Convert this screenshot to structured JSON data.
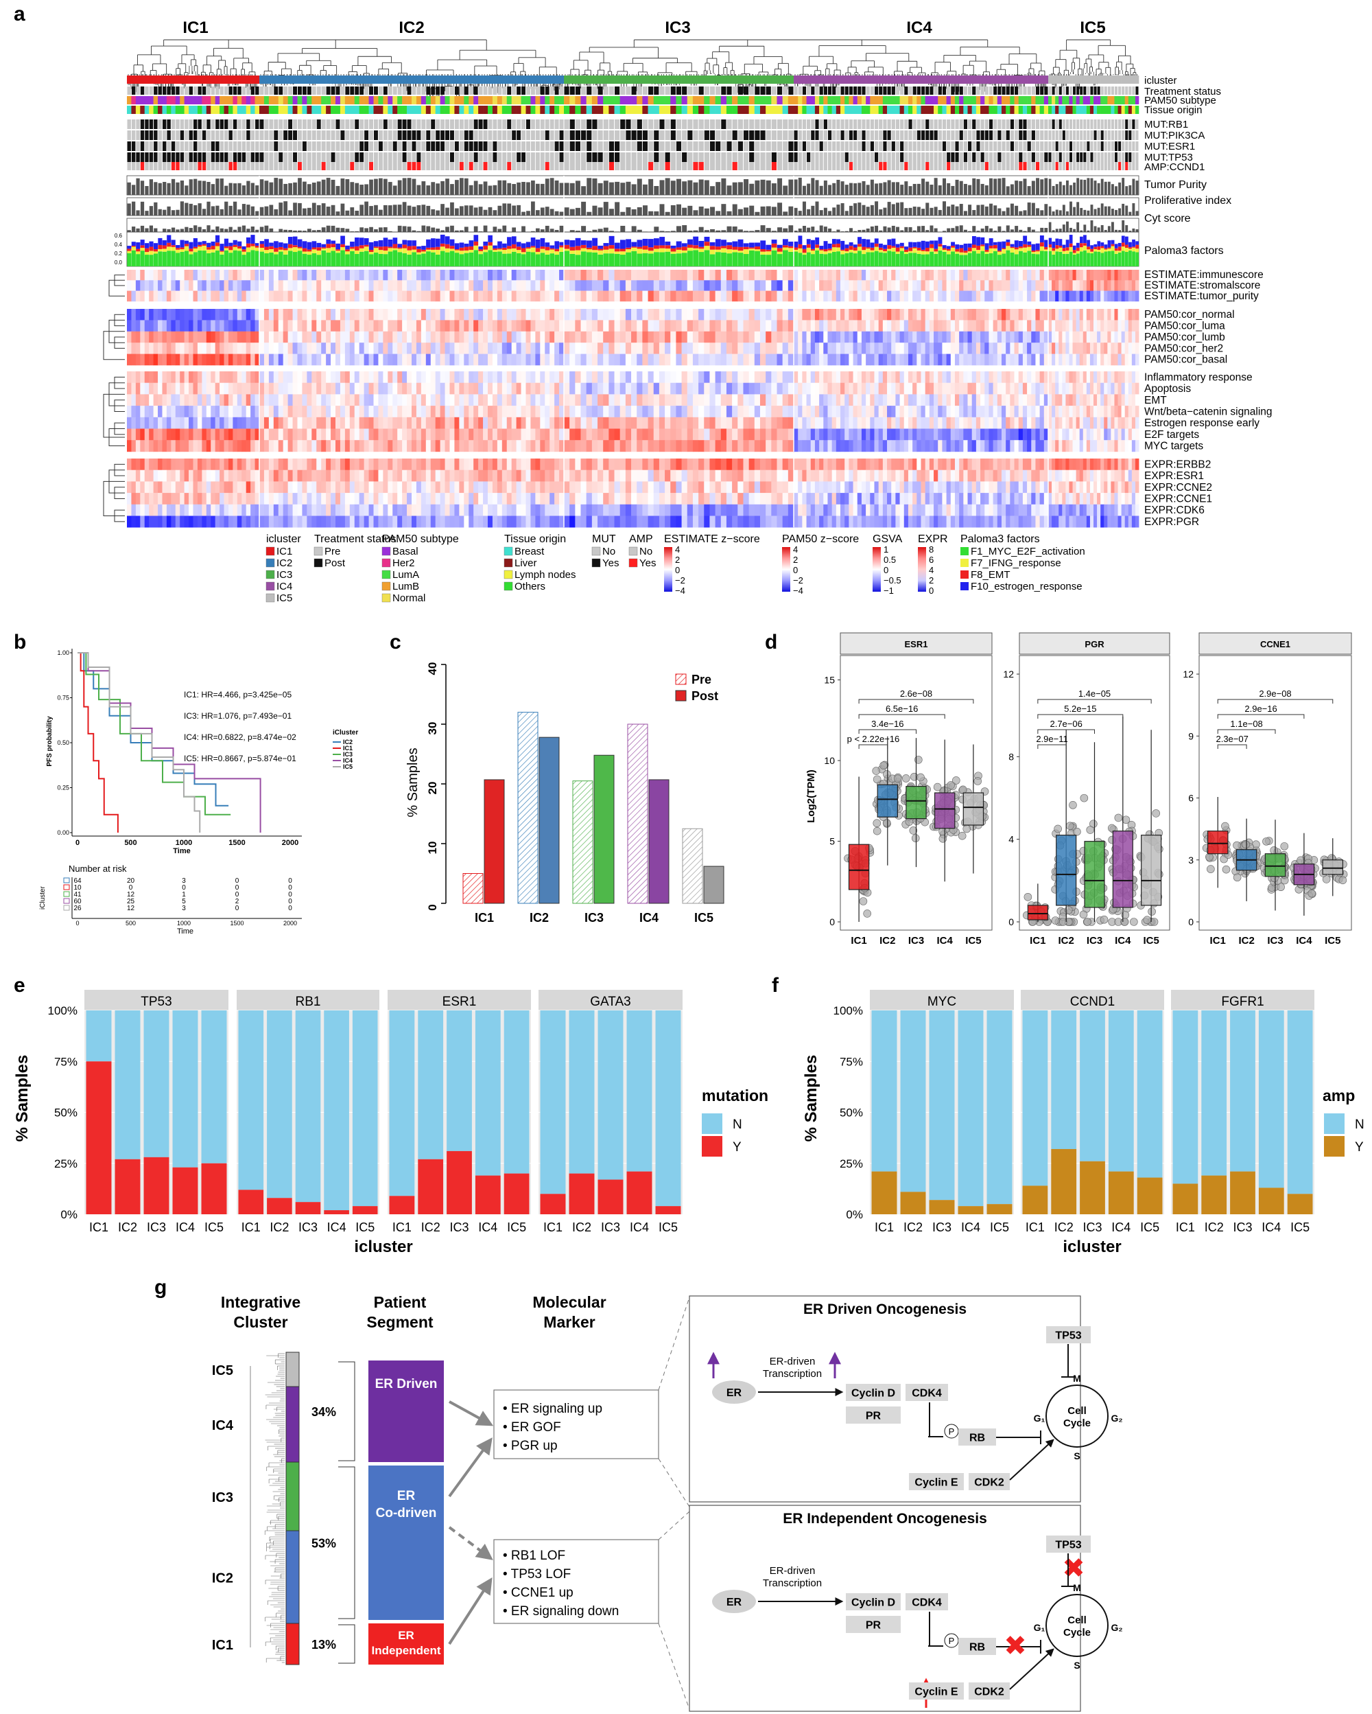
{
  "figure": {
    "panel_letters": [
      "a",
      "b",
      "c",
      "d",
      "e",
      "f",
      "g"
    ]
  },
  "panel_a": {
    "cluster_titles": [
      "IC1",
      "IC2",
      "IC3",
      "IC4",
      "IC5"
    ],
    "track_labels": [
      "icluster",
      "Treatment status",
      "PAM50 subtype",
      "Tissue origin",
      "MUT:RB1",
      "MUT:PIK3CA",
      "MUT:ESR1",
      "MUT:TP53",
      "AMP:CCND1"
    ],
    "bar_labels": [
      "Tumor Purity",
      "Proliferative index",
      "Cyt score",
      "Paloma3 factors"
    ],
    "heat_row_labels": [
      "ESTIMATE:immunescore",
      "ESTIMATE:stromalscore",
      "ESTIMATE:tumor_purity",
      "PAM50:cor_normal",
      "PAM50:cor_luma",
      "PAM50:cor_lumb",
      "PAM50:cor_her2",
      "PAM50:cor_basal",
      "Inflammatory response",
      "Apoptosis",
      "EMT",
      "Wnt/beta−catenin signaling",
      "Estrogen response early",
      "E2F targets",
      "MYC targets",
      "EXPR:ERBB2",
      "EXPR:ESR1",
      "EXPR:CCNE2",
      "EXPR:CCNE1",
      "EXPR:CDK6",
      "EXPR:PGR"
    ],
    "legends": [
      {
        "title": "icluster",
        "items": [
          {
            "label": "IC1",
            "color": "#e41a1c"
          },
          {
            "label": "IC2",
            "color": "#377eb8"
          },
          {
            "label": "IC3",
            "color": "#4daf4a"
          },
          {
            "label": "IC4",
            "color": "#984ea3"
          },
          {
            "label": "IC5",
            "color": "#bdbdbd"
          }
        ]
      },
      {
        "title": "Treatment status",
        "items": [
          {
            "label": "Pre",
            "color": "#c8c8c8"
          },
          {
            "label": "Post",
            "color": "#111111"
          }
        ]
      },
      {
        "title": "PAM50 subtype",
        "items": [
          {
            "label": "Basal",
            "color": "#9b30d9"
          },
          {
            "label": "Her2",
            "color": "#e8308a"
          },
          {
            "label": "LumA",
            "color": "#44dd44"
          },
          {
            "label": "LumB",
            "color": "#f0a030"
          },
          {
            "label": "Normal",
            "color": "#f0e050"
          }
        ]
      },
      {
        "title": "Tissue origin",
        "items": [
          {
            "label": "Breast",
            "color": "#40e0d0"
          },
          {
            "label": "Liver",
            "color": "#8b1a1a"
          },
          {
            "label": "Lymph nodes",
            "color": "#f0f040"
          },
          {
            "label": "Others",
            "color": "#33dd33"
          }
        ]
      },
      {
        "title": "MUT",
        "items": [
          {
            "label": "No",
            "color": "#c8c8c8"
          },
          {
            "label": "Yes",
            "color": "#111111"
          }
        ]
      },
      {
        "title": "AMP",
        "items": [
          {
            "label": "No",
            "color": "#c8c8c8"
          },
          {
            "label": "Yes",
            "color": "#ff2020"
          }
        ]
      }
    ],
    "gradient_legends": [
      {
        "title": "ESTIMATE z−score",
        "ticks": [
          "4",
          "2",
          "0",
          "−2",
          "−4"
        ]
      },
      {
        "title": "PAM50 z−score",
        "ticks": [
          "4",
          "2",
          "0",
          "−2",
          "−4"
        ]
      },
      {
        "title": "GSVA",
        "ticks": [
          "1",
          "0.5",
          "0",
          "−0.5",
          "−1"
        ]
      },
      {
        "title": "EXPR",
        "ticks": [
          "8",
          "6",
          "4",
          "2",
          "0"
        ]
      }
    ],
    "paloma_legend": {
      "title": "Paloma3 factors",
      "items": [
        {
          "label": "F1_MYC_E2F_activation",
          "color": "#33dd33"
        },
        {
          "label": "F7_IFNG_response",
          "color": "#f0f040"
        },
        {
          "label": "F8_EMT",
          "color": "#ee2222"
        },
        {
          "label": "F10_estrogen_response",
          "color": "#2222ee"
        }
      ]
    },
    "cluster_colors": [
      "#e41a1c",
      "#377eb8",
      "#4daf4a",
      "#984ea3",
      "#bdbdbd"
    ]
  },
  "panel_b": {
    "ylabel": "PFS probability",
    "xlabel": "Time",
    "x_ticks": [
      "0",
      "500",
      "1000",
      "1500",
      "2000"
    ],
    "y_ticks": [
      "0.00",
      "0.25",
      "0.50",
      "0.75",
      "1.00"
    ],
    "annotations": [
      "IC1: HR=4.466, p=3.425e−05",
      "IC3: HR=1.076, p=7.493e−01",
      "IC4: HR=0.6822, p=8.474e−02",
      "IC5: HR=0.8667, p=5.874e−01"
    ],
    "legend_title": "iCluster",
    "legend_items": [
      "IC2",
      "IC1",
      "IC3",
      "IC4",
      "IC5"
    ],
    "risk_title": "Number at risk",
    "risk_ylabel": "iCluster",
    "risk_rows": [
      {
        "label": "IC2",
        "values": [
          "64",
          "20",
          "3",
          "0",
          "0"
        ]
      },
      {
        "label": "IC1",
        "values": [
          "10",
          "0",
          "0",
          "0",
          "0"
        ]
      },
      {
        "label": "IC3",
        "values": [
          "41",
          "12",
          "1",
          "0",
          "0"
        ]
      },
      {
        "label": "IC4",
        "values": [
          "60",
          "25",
          "5",
          "2",
          "0"
        ]
      },
      {
        "label": "IC5",
        "values": [
          "26",
          "12",
          "3",
          "0",
          "0"
        ]
      }
    ],
    "risk_xlabel": "Time"
  },
  "panel_c": {
    "chart_data": {
      "type": "bar",
      "categories": [
        "IC1",
        "IC2",
        "IC3",
        "IC4",
        "IC5"
      ],
      "series": [
        {
          "name": "Pre",
          "values": [
            5,
            32,
            20.5,
            30,
            12.5
          ]
        },
        {
          "name": "Post",
          "values": [
            20.7,
            27.8,
            24.8,
            20.7,
            6.2
          ]
        }
      ],
      "ylabel": "% Samples",
      "ylim": [
        0,
        40
      ],
      "y_ticks": [
        "0",
        "10",
        "20",
        "30",
        "40"
      ],
      "legend": [
        "Pre",
        "Post"
      ]
    }
  },
  "panel_d": {
    "ylabel": "Log2(TPM)",
    "facets": [
      {
        "title": "ESR1",
        "y_ticks": [
          "0",
          "5",
          "10",
          "15"
        ],
        "ymax": 16,
        "medians": [
          3.2,
          7.6,
          7.5,
          7.0,
          7.1
        ],
        "q1": [
          2.0,
          6.5,
          6.4,
          5.8,
          6.0
        ],
        "q3": [
          4.8,
          8.5,
          8.4,
          8.0,
          8.0
        ],
        "comparisons": [
          "p < 2.22e−16",
          "3.4e−16",
          "6.5e−16",
          "2.6e−08"
        ]
      },
      {
        "title": "PGR",
        "y_ticks": [
          "0",
          "4",
          "8",
          "12"
        ],
        "ymax": 12.5,
        "medians": [
          0.4,
          2.3,
          2.0,
          2.0,
          2.0
        ],
        "q1": [
          0.1,
          0.8,
          0.7,
          0.7,
          0.8
        ],
        "q3": [
          0.8,
          4.2,
          3.9,
          4.4,
          4.2
        ],
        "comparisons": [
          "2.9e−11",
          "2.7e−06",
          "5.2e−15",
          "1.4e−05"
        ]
      },
      {
        "title": "CCNE1",
        "y_ticks": [
          "0",
          "3",
          "6",
          "9",
          "12"
        ],
        "ymax": 12.5,
        "medians": [
          3.8,
          3.0,
          2.7,
          2.3,
          2.6
        ],
        "q1": [
          3.3,
          2.5,
          2.2,
          1.8,
          2.3
        ],
        "q3": [
          4.4,
          3.5,
          3.3,
          2.8,
          3.0
        ],
        "comparisons": [
          "2.3e−07",
          "1.1e−08",
          "2.9e−16",
          "2.9e−08"
        ]
      }
    ],
    "x_ticks": [
      "IC1",
      "IC2",
      "IC3",
      "IC4",
      "IC5"
    ]
  },
  "panel_e": {
    "chart_data": {
      "type": "bar",
      "stacked": true,
      "facets": [
        "TP53",
        "RB1",
        "ESR1",
        "GATA3"
      ],
      "categories": [
        "IC1",
        "IC2",
        "IC3",
        "IC4",
        "IC5"
      ],
      "Y_percent": [
        [
          75,
          27,
          28,
          23,
          25
        ],
        [
          12,
          8,
          6,
          2,
          4
        ],
        [
          9,
          27,
          31,
          19,
          20
        ],
        [
          10,
          20,
          17,
          21,
          4
        ]
      ],
      "ylabel": "% Samples",
      "xlabel": "icluster",
      "y_ticks": [
        "0%",
        "25%",
        "50%",
        "75%",
        "100%"
      ],
      "legend_title": "mutation",
      "legend": [
        "N",
        "Y"
      ]
    }
  },
  "panel_f": {
    "chart_data": {
      "type": "bar",
      "stacked": true,
      "facets": [
        "MYC",
        "CCND1",
        "FGFR1"
      ],
      "categories": [
        "IC1",
        "IC2",
        "IC3",
        "IC4",
        "IC5"
      ],
      "Y_percent": [
        [
          21,
          11,
          7,
          4,
          5
        ],
        [
          14,
          32,
          26,
          21,
          18
        ],
        [
          15,
          19,
          21,
          13,
          10
        ]
      ],
      "ylabel": "% Samples",
      "xlabel": "icluster",
      "y_ticks": [
        "0%",
        "25%",
        "50%",
        "75%",
        "100%"
      ],
      "legend_title": "amp",
      "legend": [
        "N",
        "Y"
      ]
    }
  },
  "panel_g": {
    "headers": [
      "Integrative Cluster",
      "Patient Segment",
      "Molecular Marker"
    ],
    "clusters": [
      "IC5",
      "IC4",
      "IC3",
      "IC2",
      "IC1"
    ],
    "segments": [
      {
        "label": "ER Driven",
        "percent": "34%",
        "color": "#6e2fa0"
      },
      {
        "label": "ER Co-driven",
        "percent": "53%",
        "color": "#4b74c4"
      },
      {
        "label": "ER Independent",
        "percent": "13%",
        "color": "#ee2222"
      }
    ],
    "markers_top": [
      "ER signaling up",
      "ER GOF",
      "PGR up"
    ],
    "markers_bottom": [
      "RB1 LOF",
      "TP53 LOF",
      "CCNE1 up",
      "ER signaling down"
    ],
    "box_top_title": "ER Driven Oncogenesis",
    "box_bottom_title": "ER Independent Oncogenesis",
    "pathway": {
      "er": "ER",
      "transcription": "ER-driven Transcription",
      "cyclin_d": "Cyclin D",
      "cdk4": "CDK4",
      "pr": "PR",
      "rb": "RB",
      "p": "P",
      "cyclin_e": "Cyclin E",
      "cdk2": "CDK2",
      "tp53": "TP53",
      "cell_cycle": "Cell Cycle",
      "m": "M",
      "s": "S",
      "g1": "G₁",
      "g2": "G₂"
    }
  }
}
